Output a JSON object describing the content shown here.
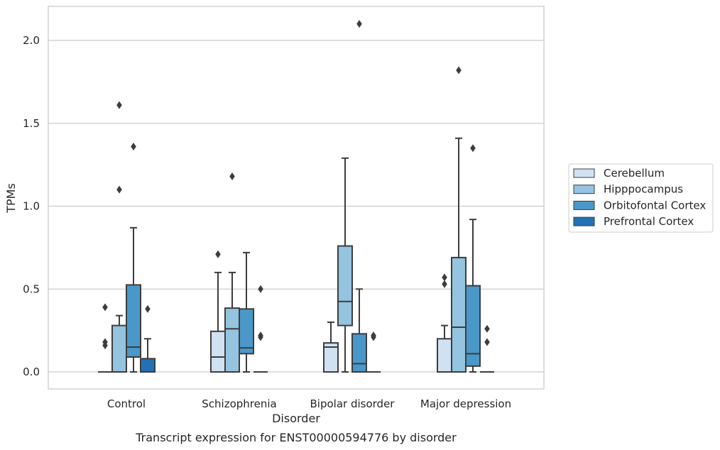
{
  "chart_data": {
    "type": "box",
    "caption": "Transcript expression for ENST00000594776 by disorder",
    "xlabel": "Disorder",
    "ylabel": "TPMs",
    "ylim": [
      -0.1,
      2.22
    ],
    "yticks": [
      0.0,
      0.5,
      1.0,
      1.5,
      2.0
    ],
    "ytick_labels": [
      "0.0",
      "0.5",
      "1.0",
      "1.5",
      "2.0"
    ],
    "grid": "horizontal",
    "legend_position": "right",
    "categories": [
      "Control",
      "Schizophrenia",
      "Bipolar disorder",
      "Major depression"
    ],
    "series": [
      {
        "name": "Cerebellum",
        "color": "#d0e1f2",
        "boxes": [
          {
            "q1": 0.0,
            "median": 0.0,
            "q3": 0.0,
            "whisker_low": 0.0,
            "whisker_high": 0.0,
            "outliers": [
              0.39,
              0.18,
              0.16
            ]
          },
          {
            "q1": 0.0,
            "median": 0.09,
            "q3": 0.245,
            "whisker_low": 0.0,
            "whisker_high": 0.6,
            "outliers": [
              0.71
            ]
          },
          {
            "q1": 0.0,
            "median": 0.15,
            "q3": 0.175,
            "whisker_low": 0.0,
            "whisker_high": 0.3,
            "outliers": []
          },
          {
            "q1": 0.0,
            "median": 0.0,
            "q3": 0.2,
            "whisker_low": 0.0,
            "whisker_high": 0.28,
            "outliers": [
              0.57,
              0.53
            ]
          }
        ]
      },
      {
        "name": "Hipppocampus",
        "color": "#94c4df",
        "boxes": [
          {
            "q1": 0.0,
            "median": 0.0,
            "q3": 0.28,
            "whisker_low": 0.0,
            "whisker_high": 0.34,
            "outliers": [
              1.61,
              1.1
            ]
          },
          {
            "q1": 0.0,
            "median": 0.26,
            "q3": 0.385,
            "whisker_low": 0.0,
            "whisker_high": 0.6,
            "outliers": [
              1.18
            ]
          },
          {
            "q1": 0.28,
            "median": 0.425,
            "q3": 0.76,
            "whisker_low": 0.0,
            "whisker_high": 1.29,
            "outliers": []
          },
          {
            "q1": 0.0,
            "median": 0.27,
            "q3": 0.69,
            "whisker_low": 0.0,
            "whisker_high": 1.41,
            "outliers": [
              1.82
            ]
          }
        ]
      },
      {
        "name": "Orbitofontal Cortex",
        "color": "#4a98c9",
        "boxes": [
          {
            "q1": 0.09,
            "median": 0.15,
            "q3": 0.525,
            "whisker_low": 0.0,
            "whisker_high": 0.87,
            "outliers": [
              1.36
            ]
          },
          {
            "q1": 0.11,
            "median": 0.145,
            "q3": 0.38,
            "whisker_low": 0.0,
            "whisker_high": 0.72,
            "outliers": []
          },
          {
            "q1": 0.0,
            "median": 0.05,
            "q3": 0.23,
            "whisker_low": 0.0,
            "whisker_high": 0.5,
            "outliers": [
              2.1
            ]
          },
          {
            "q1": 0.035,
            "median": 0.11,
            "q3": 0.52,
            "whisker_low": 0.0,
            "whisker_high": 0.92,
            "outliers": [
              1.35
            ]
          }
        ]
      },
      {
        "name": "Prefrontal Cortex",
        "color": "#2271b5",
        "boxes": [
          {
            "q1": 0.0,
            "median": 0.0,
            "q3": 0.08,
            "whisker_low": 0.0,
            "whisker_high": 0.2,
            "outliers": [
              0.38
            ]
          },
          {
            "q1": 0.0,
            "median": 0.0,
            "q3": 0.0,
            "whisker_low": 0.0,
            "whisker_high": 0.0,
            "outliers": [
              0.5,
              0.22,
              0.21
            ]
          },
          {
            "q1": 0.0,
            "median": 0.0,
            "q3": 0.0,
            "whisker_low": 0.0,
            "whisker_high": 0.0,
            "outliers": [
              0.22,
              0.21
            ]
          },
          {
            "q1": 0.0,
            "median": 0.0,
            "q3": 0.0,
            "whisker_low": 0.0,
            "whisker_high": 0.0,
            "outliers": [
              0.26,
              0.18
            ]
          }
        ]
      }
    ]
  }
}
